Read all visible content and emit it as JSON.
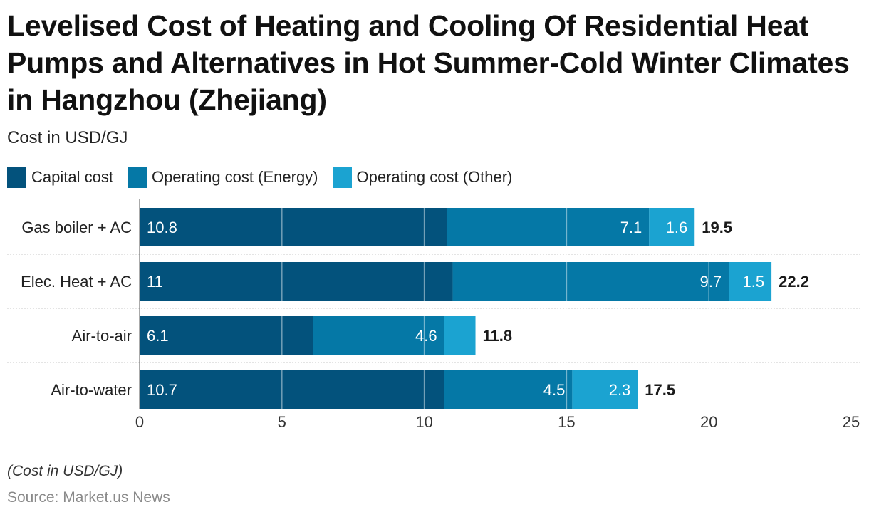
{
  "title": "Levelised Cost of Heating and Cooling Of Residential Heat Pumps and Alternatives in Hot Summer-Cold Winter Climates in Hangzhou (Zhejiang)",
  "subtitle": "Cost in USD/GJ",
  "note": "(Cost in USD/GJ)",
  "source": "Source: Market.us News",
  "colors": {
    "capital": "#03527c",
    "energy": "#0578a6",
    "other": "#1ba3d1"
  },
  "chart_data": {
    "type": "bar",
    "orientation": "horizontal",
    "stacked": true,
    "categories": [
      "Gas boiler + AC",
      "Elec. Heat + AC",
      "Air-to-air",
      "Air-to-water"
    ],
    "series": [
      {
        "name": "Capital cost",
        "key": "capital",
        "values": [
          10.8,
          11,
          6.1,
          10.7
        ],
        "labels": [
          "10.8",
          "11",
          "6.1",
          "10.7"
        ]
      },
      {
        "name": "Operating cost (Energy)",
        "key": "energy",
        "values": [
          7.1,
          9.7,
          4.6,
          4.5
        ],
        "labels": [
          "7.1",
          "9.7",
          "4.6",
          "4.5"
        ]
      },
      {
        "name": "Operating cost (Other)",
        "key": "other",
        "values": [
          1.6,
          1.5,
          1.1,
          2.3
        ],
        "labels": [
          "1.6",
          "1.5",
          "",
          "2.3"
        ]
      }
    ],
    "totals": [
      "19.5",
      "22.2",
      "11.8",
      "17.5"
    ],
    "xlim": [
      0,
      25
    ],
    "xticks": [
      "0",
      "5",
      "10",
      "15",
      "20",
      "25"
    ],
    "xlabel": "",
    "ylabel": "",
    "legend": "top-left"
  }
}
